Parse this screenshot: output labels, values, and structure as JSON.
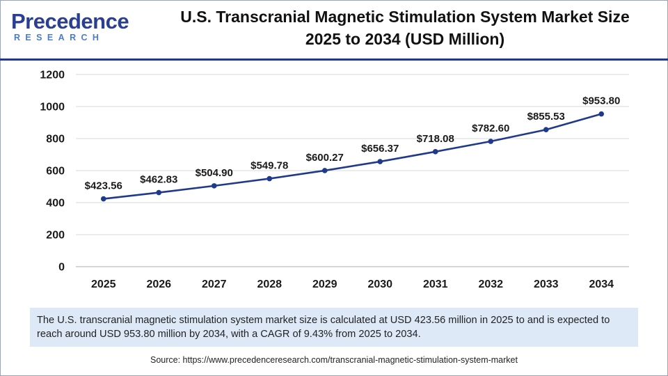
{
  "brand": {
    "logo_top": "Precedence",
    "logo_bottom": "RESEARCH"
  },
  "header": {
    "title_line1": "U.S. Transcranial Magnetic Stimulation System Market Size",
    "title_line2": "2025 to 2034 (USD Million)"
  },
  "chart_data": {
    "type": "line",
    "title": "U.S. Transcranial Magnetic Stimulation System Market Size 2025 to 2034 (USD Million)",
    "xlabel": "",
    "ylabel": "",
    "categories": [
      "2025",
      "2026",
      "2027",
      "2028",
      "2029",
      "2030",
      "2031",
      "2032",
      "2033",
      "2034"
    ],
    "series": [
      {
        "name": "Market Size (USD Million)",
        "values": [
          423.56,
          462.83,
          504.9,
          549.78,
          600.27,
          656.37,
          718.08,
          782.6,
          855.53,
          953.8
        ],
        "labels": [
          "$423.56",
          "$462.83",
          "$504.90",
          "$549.78",
          "$600.27",
          "$656.37",
          "$718.08",
          "$782.60",
          "$855.53",
          "$953.80"
        ]
      }
    ],
    "ylim": [
      0,
      1200
    ],
    "yticks": [
      0,
      200,
      400,
      600,
      800,
      1000,
      1200
    ],
    "ytick_labels": [
      "0",
      "200",
      "400",
      "600",
      "800",
      "1000",
      "1200"
    ],
    "grid": true,
    "line_color": "#1f3a8a"
  },
  "summary": "The U.S. transcranial magnetic stimulation system market size is calculated at USD 423.56 million in 2025 to and is expected to reach around USD 953.80 million by 2034, with a CAGR of 9.43% from 2025 to 2034.",
  "source": "Source: https://www.precedenceresearch.com/transcranial-magnetic-stimulation-system-market"
}
